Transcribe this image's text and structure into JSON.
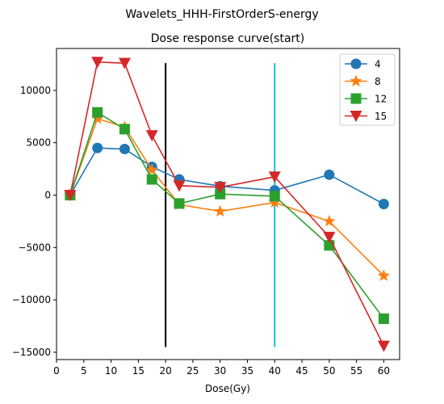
{
  "figure": {
    "suptitle": "Wavelets_HHH-FirstOrderS-energy"
  },
  "chart_data": {
    "type": "line",
    "title": "Dose response curve(start)",
    "xlabel": "Dose(Gy)",
    "ylabel": "",
    "xlim": [
      0,
      62.9
    ],
    "ylim": [
      -15700,
      14000
    ],
    "x_ticks": [
      0,
      5,
      10,
      15,
      20,
      25,
      30,
      35,
      40,
      45,
      50,
      55,
      60
    ],
    "y_ticks": [
      -15000,
      -10000,
      -5000,
      0,
      5000,
      10000
    ],
    "grid": false,
    "legend_position": "top-right",
    "x": [
      2.5,
      7.5,
      12.5,
      17.5,
      22.5,
      30,
      40,
      50,
      60
    ],
    "series": [
      {
        "name": "4",
        "color": "#1f77b4",
        "marker": "circle",
        "values": [
          0,
          4500,
          4400,
          2700,
          1500,
          850,
          450,
          1950,
          -850
        ]
      },
      {
        "name": "8",
        "color": "#ff7f0e",
        "marker": "star",
        "values": [
          0,
          7300,
          6500,
          2400,
          -900,
          -1550,
          -700,
          -2500,
          -7700
        ]
      },
      {
        "name": "12",
        "color": "#2ca02c",
        "marker": "square",
        "values": [
          0,
          7900,
          6300,
          1500,
          -800,
          100,
          -100,
          -4800,
          -11800
        ]
      },
      {
        "name": "15",
        "color": "#d62728",
        "marker": "triangle-down",
        "values": [
          0,
          12700,
          12600,
          5700,
          900,
          750,
          1750,
          -4000,
          -14400
        ]
      }
    ],
    "vertical_lines": [
      {
        "x": 20,
        "y_range": [
          -14500,
          12600
        ],
        "color": "#000000"
      },
      {
        "x": 40,
        "y_range": [
          -14500,
          12600
        ],
        "color": "#17becf"
      }
    ]
  }
}
